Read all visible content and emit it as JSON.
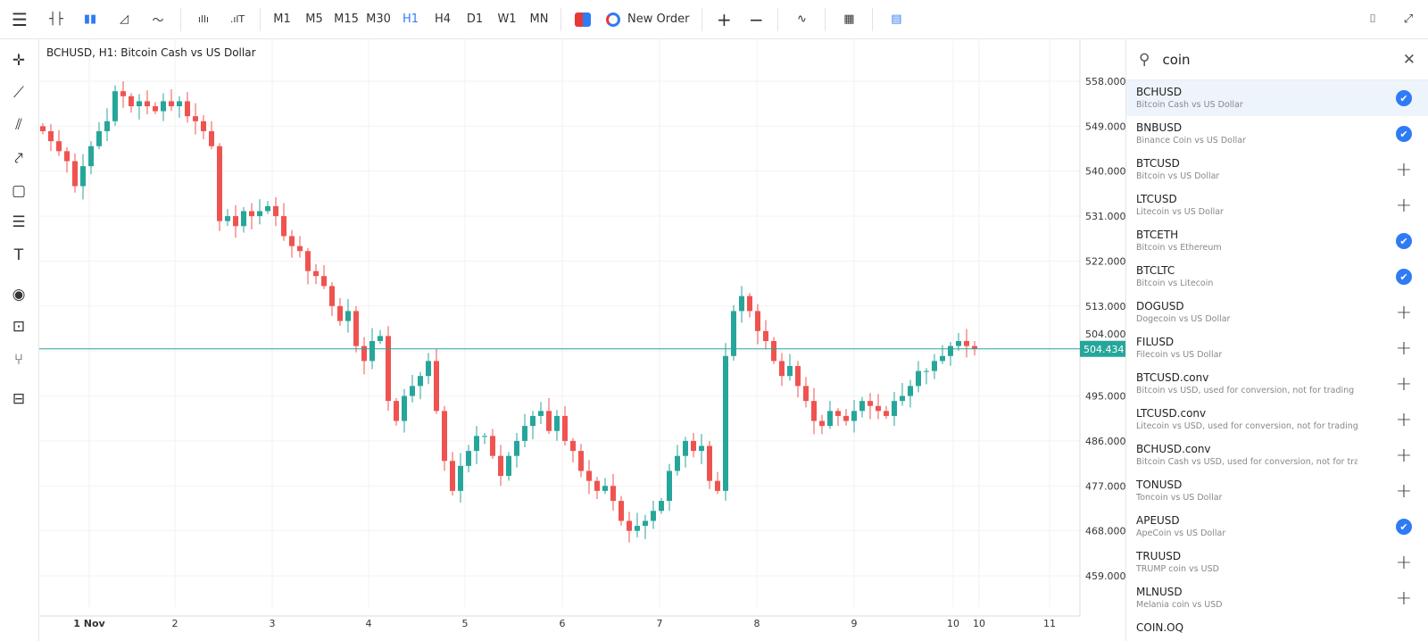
{
  "toolbar": {
    "timeframes": [
      "M1",
      "M5",
      "M15",
      "M30",
      "H1",
      "H4",
      "D1",
      "W1",
      "MN"
    ],
    "active_timeframe": "H1",
    "new_order": "New Order"
  },
  "chart_title": "BCHUSD, H1: Bitcoin Cash vs US Dollar",
  "colors": {
    "up": "#26a69a",
    "down": "#ef5350",
    "accent": "#2f7bf5",
    "price_line": "#26a69a"
  },
  "chart_data": {
    "type": "candlestick",
    "symbol": "BCHUSD",
    "timeframe": "H1",
    "ylim": [
      455,
      564
    ],
    "y_ticks": [
      "558.000",
      "549.000",
      "540.000",
      "531.000",
      "522.000",
      "513.000",
      "504.000",
      "495.000",
      "486.000",
      "477.000",
      "468.000",
      "459.000"
    ],
    "x_ticks": [
      "1 Nov",
      "2",
      "3",
      "4",
      "5",
      "6",
      "7",
      "8",
      "9",
      "10",
      "10",
      "11"
    ],
    "current_price": "504.434",
    "closes": [
      548,
      546,
      544,
      542,
      537,
      541,
      545,
      548,
      550,
      556,
      555,
      553,
      554,
      553,
      552,
      554,
      553,
      554,
      551,
      550,
      548,
      545,
      530,
      531,
      529,
      532,
      531,
      532,
      533,
      531,
      527,
      525,
      524,
      520,
      519,
      517,
      513,
      510,
      512,
      505,
      502,
      506,
      507,
      494,
      490,
      495,
      497,
      499,
      502,
      492,
      482,
      476,
      481,
      484,
      487,
      487,
      483,
      479,
      483,
      486,
      489,
      491,
      492,
      488,
      491,
      486,
      484,
      480,
      478,
      476,
      477,
      474,
      470,
      468,
      469,
      470,
      472,
      474,
      480,
      483,
      486,
      484,
      485,
      478,
      476,
      503,
      512,
      515,
      512,
      508,
      506,
      502,
      499,
      501,
      497,
      494,
      490,
      489,
      492,
      491,
      490,
      492,
      494,
      493,
      492,
      491,
      494,
      495,
      497,
      500,
      500,
      502,
      503,
      505,
      506,
      505,
      504.434
    ]
  },
  "search": {
    "value": "coin",
    "placeholder": "Search"
  },
  "symbols": [
    {
      "sym": "BCHUSD",
      "desc": "Bitcoin Cash vs US Dollar",
      "added": true
    },
    {
      "sym": "BNBUSD",
      "desc": "Binance Coin vs US Dollar",
      "added": true
    },
    {
      "sym": "BTCUSD",
      "desc": "Bitcoin vs US Dollar",
      "added": false
    },
    {
      "sym": "LTCUSD",
      "desc": "Litecoin vs US Dollar",
      "added": false
    },
    {
      "sym": "BTCETH",
      "desc": "Bitcoin vs Ethereum",
      "added": true
    },
    {
      "sym": "BTCLTC",
      "desc": "Bitcoin vs Litecoin",
      "added": true
    },
    {
      "sym": "DOGUSD",
      "desc": "Dogecoin vs US Dollar",
      "added": false
    },
    {
      "sym": "FILUSD",
      "desc": "Filecoin vs US Dollar",
      "added": false
    },
    {
      "sym": "BTCUSD.conv",
      "desc": "Bitcoin vs USD, used for conversion, not for trading",
      "added": false
    },
    {
      "sym": "LTCUSD.conv",
      "desc": "Litecoin vs USD, used for conversion, not for trading",
      "added": false
    },
    {
      "sym": "BCHUSD.conv",
      "desc": "Bitcoin Cash vs USD, used for conversion, not for trading",
      "added": false
    },
    {
      "sym": "TONUSD",
      "desc": "Toncoin vs US Dollar",
      "added": false
    },
    {
      "sym": "APEUSD",
      "desc": "ApeCoin vs US Dollar",
      "added": true
    },
    {
      "sym": "TRUUSD",
      "desc": "TRUMP coin vs USD",
      "added": false
    },
    {
      "sym": "MLNUSD",
      "desc": "Melania coin vs USD",
      "added": false
    },
    {
      "sym": "COIN.OQ",
      "desc": "",
      "added": false
    }
  ]
}
